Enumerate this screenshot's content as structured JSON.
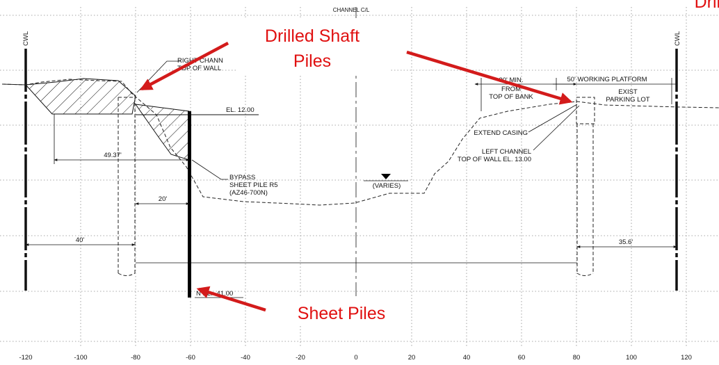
{
  "colors": {
    "callout": "#e01010",
    "line": "#111111",
    "grid": "#8a8a8a"
  },
  "top_label": "CHANNEL C/L",
  "corner_callout": "Drilled",
  "callouts": {
    "drilled_line1": "Drilled Shaft",
    "drilled_line2": "Piles",
    "sheet": "Sheet Piles"
  },
  "cwl_left": "CWL",
  "cwl_right": "CWL",
  "labels": {
    "right_channel_1": "RIGHT CHANN",
    "right_channel_2": "TOP OF WALL",
    "el_12": "EL. 12.00",
    "dim_4937": "49.37'",
    "bypass_1": "BYPASS",
    "bypass_2": "SHEET PILE R5",
    "bypass_3": "(AZ46-700N)",
    "varies": "(VARIES)",
    "dim_20": "20'",
    "dim_40": "40'",
    "dim_356": "35.6'",
    "tip_el": "N  EL. -41.00",
    "min_30": "30' MIN.",
    "from": "FROM",
    "top_of_bank": "TOP OF BANK",
    "working_platform": "50' WORKING PLATFORM",
    "exist": "EXIST",
    "parking_lot": "PARKING LOT",
    "extend_casing": "EXTEND CASING",
    "left_channel_1": "LEFT CHANNEL",
    "left_channel_2": "TOP OF WALL EL. 13.00"
  },
  "x_ticks": [
    "-120",
    "-100",
    "-80",
    "-60",
    "-40",
    "-20",
    "0",
    "20",
    "40",
    "60",
    "80",
    "100",
    "120"
  ]
}
